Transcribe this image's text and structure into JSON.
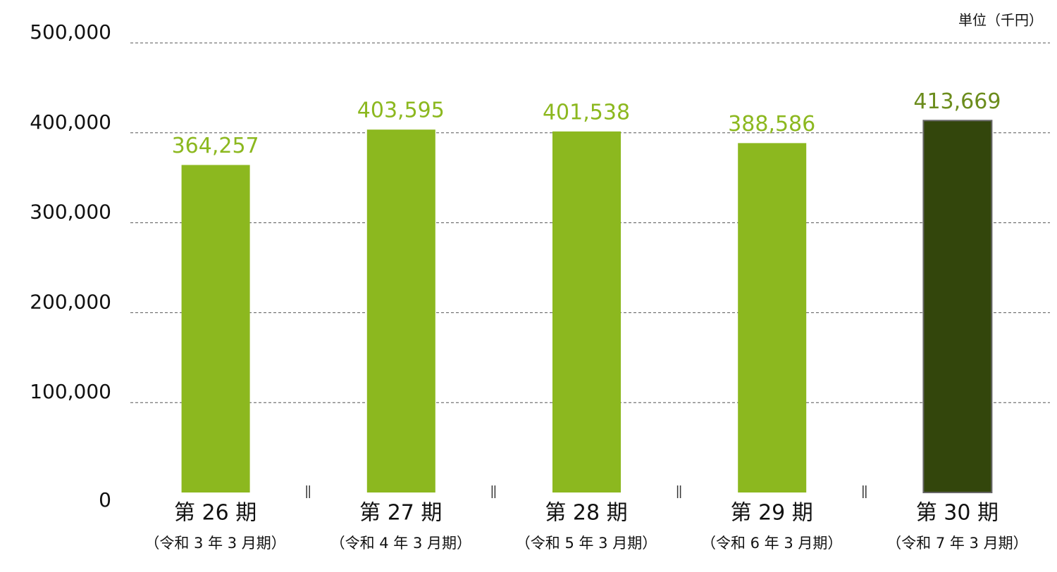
{
  "chart_data": {
    "type": "bar",
    "unit_label": "単位（千円）",
    "categories": [
      "第 26 期",
      "第 27 期",
      "第 28 期",
      "第 29 期",
      "第 30 期"
    ],
    "category_sublabels": [
      "（令和 3 年 3 月期）",
      "（令和 4 年 3 月期）",
      "（令和 5 年 3 月期）",
      "（令和 6 年 3 月期）",
      "（令和 7 年 3 月期）"
    ],
    "values": [
      364257,
      403595,
      401538,
      388586,
      413669
    ],
    "value_labels": [
      "364,257",
      "403,595",
      "401,538",
      "388,586",
      "413,669"
    ],
    "colors": [
      "#8cb81f",
      "#8cb81f",
      "#8cb81f",
      "#8cb81f",
      "#33460c"
    ],
    "label_colors": [
      "#8cb81f",
      "#8cb81f",
      "#8cb81f",
      "#8cb81f",
      "#6b8c1c"
    ],
    "ylim": [
      0,
      500000
    ],
    "yticks": [
      0,
      {
        "value": 100000,
        "label": "100,000"
      },
      {
        "value": 200000,
        "label": "200,000"
      },
      {
        "value": 300000,
        "label": "300,000"
      },
      {
        "value": 400000,
        "label": "400,000"
      },
      {
        "value": 500000,
        "label": "500,000"
      }
    ],
    "grid": true
  }
}
